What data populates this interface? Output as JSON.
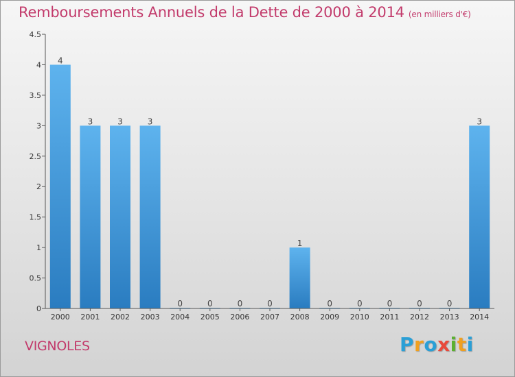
{
  "title": "Remboursements Annuels de la Dette de 2000 à 2014",
  "subtitle": "(en milliers d'€)",
  "commune": "VIGNOLES",
  "logo": {
    "letters": [
      "P",
      "r",
      "o",
      "x",
      "i",
      "t",
      "i"
    ],
    "colors": [
      "#2a9fd6",
      "#f0a020",
      "#2a9fd6",
      "#e84a3c",
      "#5bb030",
      "#f0a020",
      "#2a9fd6"
    ]
  },
  "colors": {
    "bar_light": "#5eb3ee",
    "bar_dark": "#2a7cc0",
    "accent": "#c23a6b"
  },
  "chart_data": {
    "type": "bar",
    "title": "Remboursements Annuels de la Dette de 2000 à 2014",
    "subtitle": "(en milliers d'€)",
    "categories": [
      "2000",
      "2001",
      "2002",
      "2003",
      "2004",
      "2005",
      "2006",
      "2007",
      "2008",
      "2009",
      "2010",
      "2011",
      "2012",
      "2013",
      "2014"
    ],
    "values": [
      4,
      3,
      3,
      3,
      0,
      0,
      0,
      0,
      1,
      0,
      0,
      0,
      0,
      0,
      3
    ],
    "data_labels": [
      "4",
      "3",
      "3",
      "3",
      "0",
      "0",
      "0",
      "0",
      "1",
      "0",
      "0",
      "0",
      "0",
      "0",
      "3"
    ],
    "yticks": [
      "0",
      "0.5",
      "1",
      "1.5",
      "2",
      "2.5",
      "3",
      "3.5",
      "4",
      "4.5"
    ],
    "ylim": [
      0,
      4.5
    ],
    "grid": false,
    "legend": "none"
  }
}
